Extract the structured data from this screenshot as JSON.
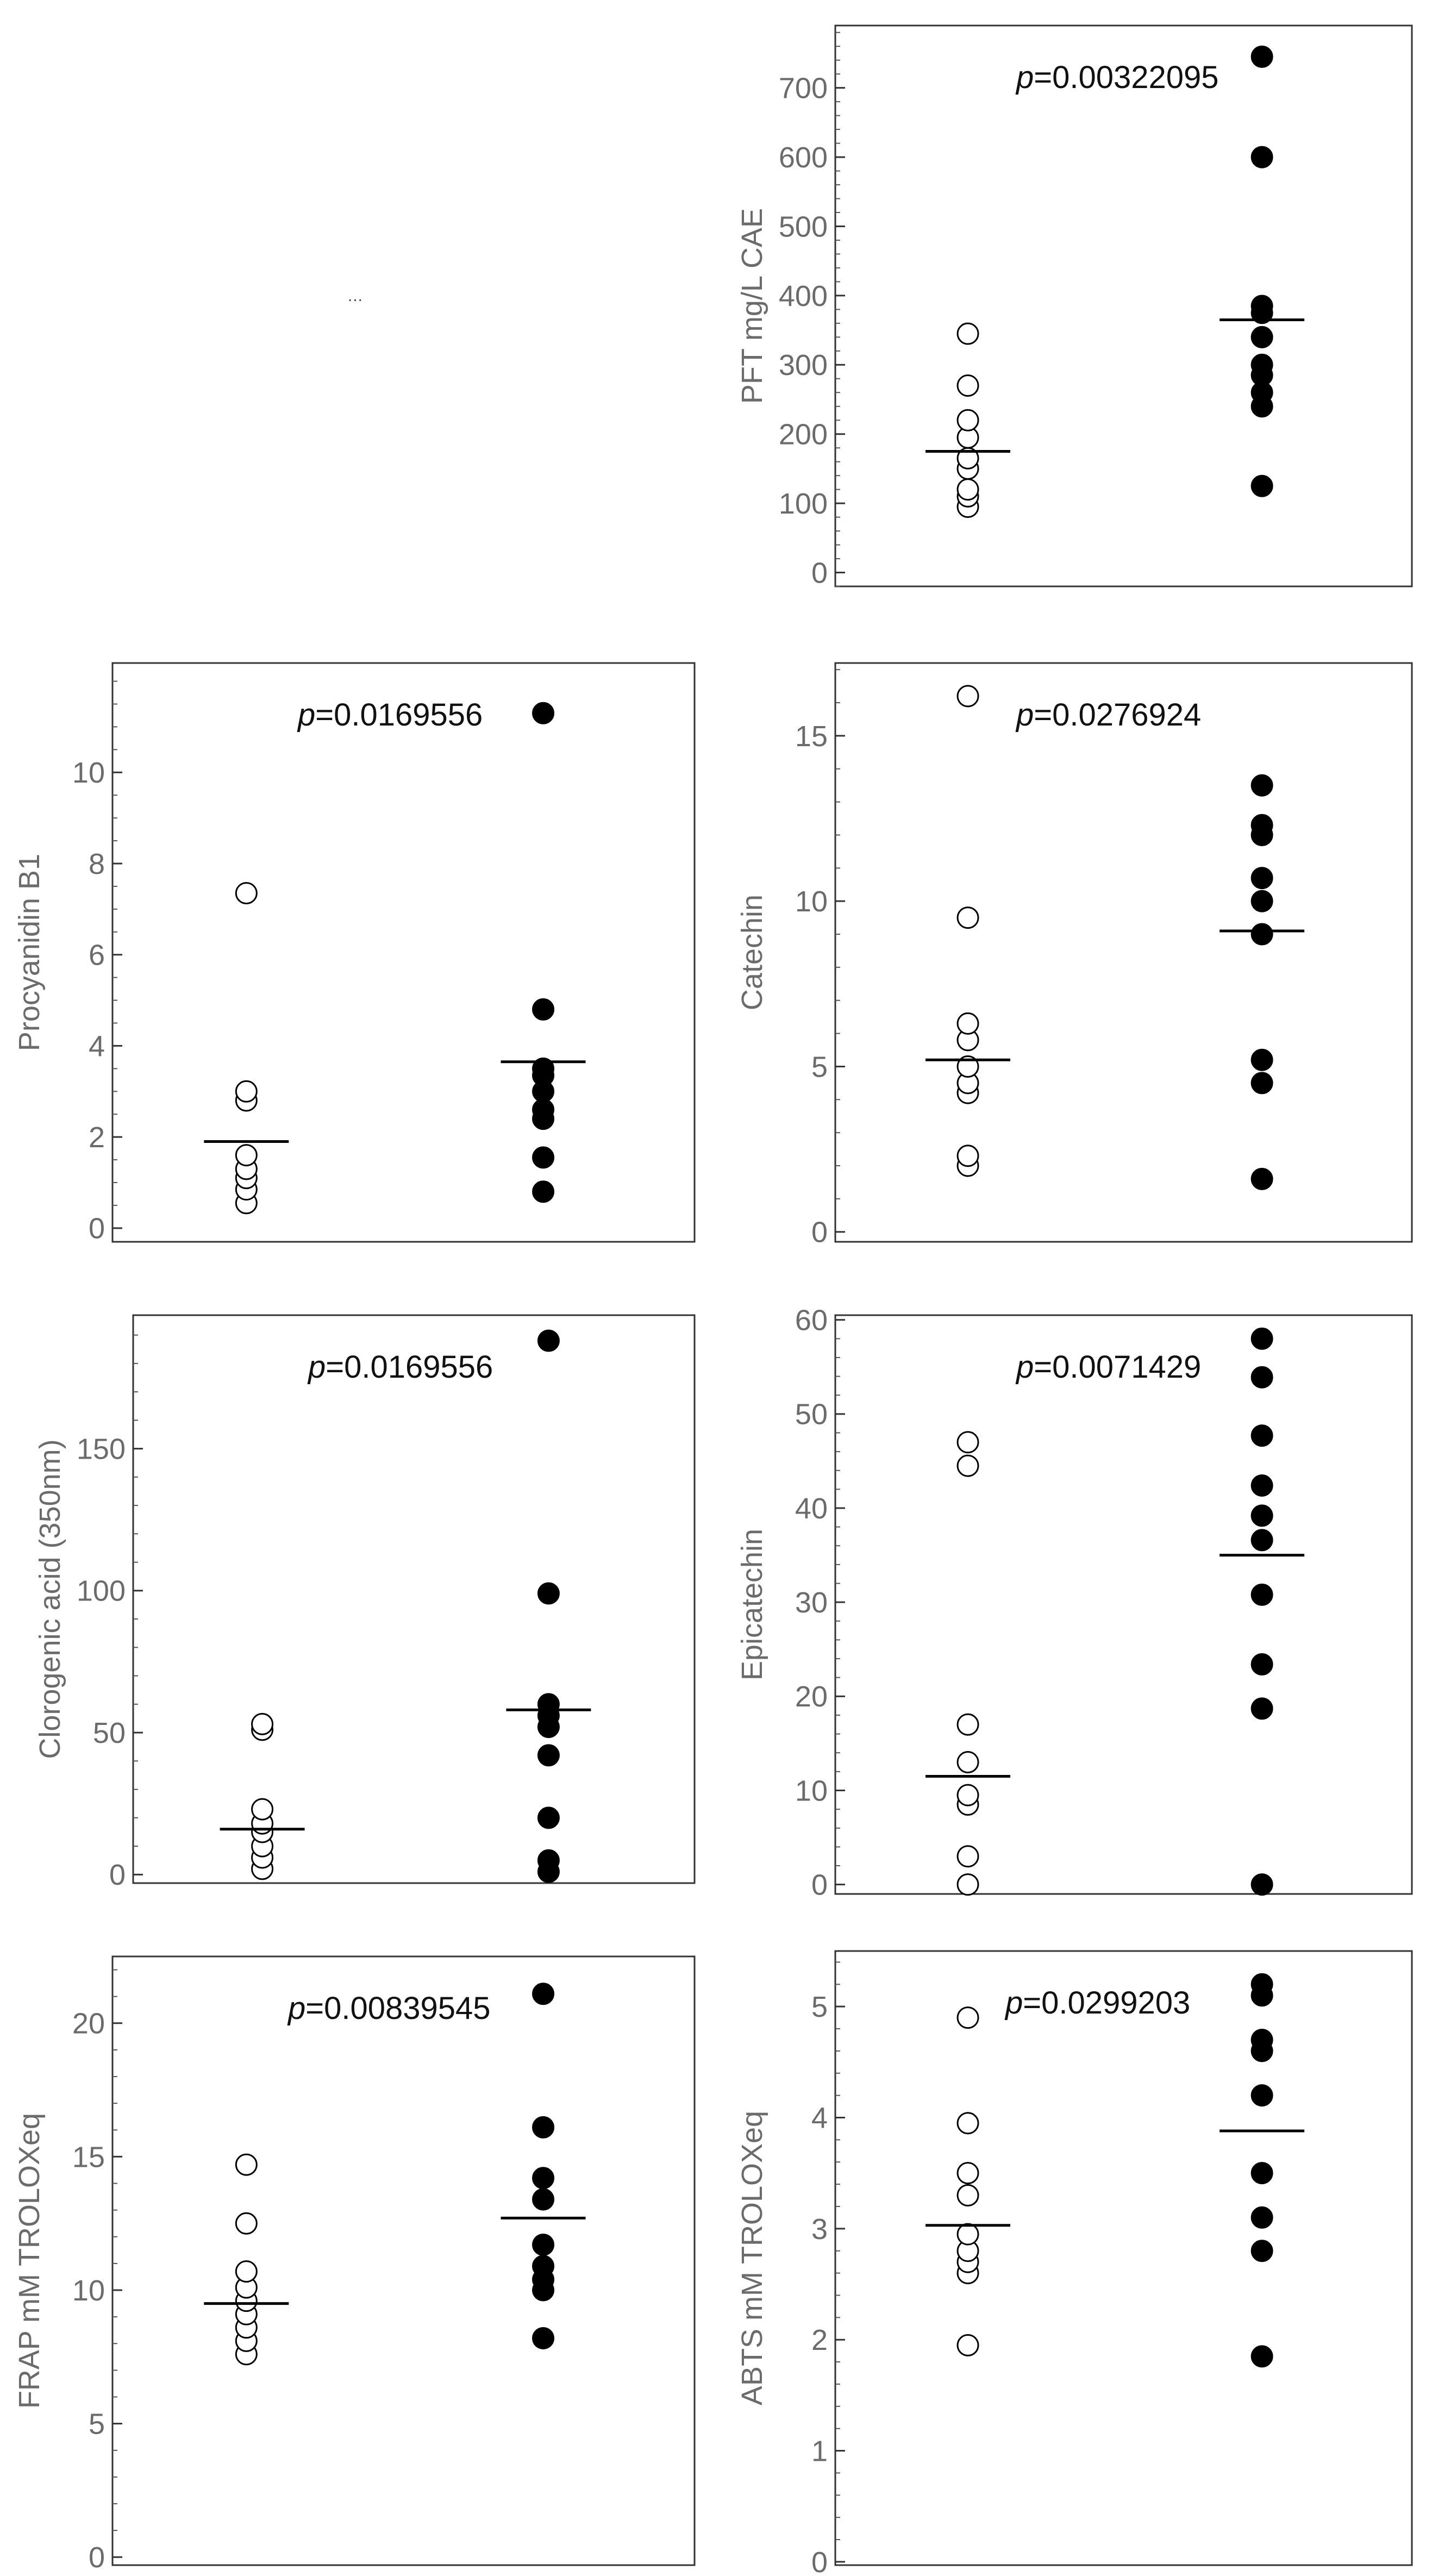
{
  "placeholder_text": "...",
  "chart_data": [
    {
      "type": "scatter",
      "title": "",
      "ylabel": "PFT mg/L CAE",
      "p_label": "p",
      "p_value": "=0.00322095",
      "ylim": [
        -20,
        790
      ],
      "ticks": [
        0,
        100,
        200,
        300,
        400,
        500,
        600,
        700
      ],
      "minor": 20,
      "series": [
        {
          "name": "group 1",
          "fill": "open",
          "values": [
            95,
            110,
            120,
            150,
            165,
            195,
            220,
            270,
            345
          ],
          "median": 175
        },
        {
          "name": "group 2",
          "fill": "filled",
          "values": [
            125,
            240,
            260,
            285,
            300,
            340,
            375,
            385,
            600,
            745
          ],
          "median": 365
        }
      ]
    },
    {
      "type": "scatter",
      "title": "",
      "ylabel": "Procyanidin B1",
      "p_label": "p",
      "p_value": "=0.0169556",
      "ylim": [
        -0.3,
        12.4
      ],
      "ticks": [
        0,
        2,
        4,
        6,
        8,
        10
      ],
      "minor": 0.5,
      "series": [
        {
          "name": "group 1",
          "fill": "open",
          "values": [
            0.55,
            0.85,
            1.1,
            1.3,
            1.6,
            2.8,
            3.0,
            7.35
          ],
          "median": 1.9
        },
        {
          "name": "group 2",
          "fill": "filled",
          "values": [
            0.8,
            1.55,
            2.4,
            2.6,
            3.0,
            3.35,
            3.5,
            4.8,
            11.3
          ],
          "median": 3.65
        }
      ]
    },
    {
      "type": "scatter",
      "title": "",
      "ylabel": "Catechin",
      "p_label": "p",
      "p_value": "=0.0276924",
      "ylim": [
        -0.3,
        17.2
      ],
      "ticks": [
        0,
        5,
        10,
        15
      ],
      "minor": 1,
      "series": [
        {
          "name": "group 1",
          "fill": "open",
          "values": [
            2.0,
            2.3,
            4.2,
            4.5,
            5.0,
            5.8,
            6.3,
            9.5,
            16.2
          ],
          "median": 5.2
        },
        {
          "name": "group 2",
          "fill": "filled",
          "values": [
            1.6,
            4.5,
            5.2,
            9.0,
            10.0,
            10.7,
            12.0,
            12.3,
            13.5
          ],
          "median": 9.1
        }
      ]
    },
    {
      "type": "scatter",
      "title": "",
      "ylabel": "Clorogenic acid (350nm)",
      "p_label": "p",
      "p_value": "=0.0169556",
      "ylim": [
        -3,
        197
      ],
      "ticks": [
        0,
        50,
        100,
        150
      ],
      "minor": 10,
      "series": [
        {
          "name": "group 1",
          "fill": "open",
          "values": [
            2,
            6,
            10,
            15,
            18,
            23,
            51,
            53
          ],
          "median": 16
        },
        {
          "name": "group 2",
          "fill": "filled",
          "values": [
            1,
            5,
            20,
            42,
            52,
            56,
            60,
            99,
            188
          ],
          "median": 58
        }
      ]
    },
    {
      "type": "scatter",
      "title": "",
      "ylabel": "Epicatechin",
      "p_label": "p",
      "p_value": "=0.0071429",
      "ylim": [
        -1,
        60.5
      ],
      "ticks": [
        0,
        10,
        20,
        30,
        40,
        50,
        60
      ],
      "minor": 2,
      "series": [
        {
          "name": "group 1",
          "fill": "open",
          "values": [
            0,
            3,
            8.5,
            9.5,
            13,
            17,
            44.5,
            47
          ],
          "median": 11.5
        },
        {
          "name": "group 2",
          "fill": "filled",
          "values": [
            0,
            18.7,
            23.4,
            30.8,
            36.6,
            39.2,
            42.4,
            47.7,
            53.9,
            58
          ],
          "median": 35
        }
      ]
    },
    {
      "type": "scatter",
      "title": "",
      "ylabel": "FRAP mM TROLOXeq",
      "p_label": "p",
      "p_value": "=0.00839545",
      "ylim": [
        -0.3,
        22.5
      ],
      "ticks": [
        0,
        5,
        10,
        15,
        20
      ],
      "minor": 1,
      "series": [
        {
          "name": "group 1",
          "fill": "open",
          "values": [
            7.6,
            8.1,
            8.6,
            9.1,
            9.6,
            10.1,
            10.7,
            12.5,
            14.7
          ],
          "median": 9.5
        },
        {
          "name": "group 2",
          "fill": "filled",
          "values": [
            8.2,
            10.0,
            10.4,
            10.9,
            11.7,
            13.4,
            14.2,
            16.1,
            21.1
          ],
          "median": 12.7
        }
      ]
    },
    {
      "type": "scatter",
      "title": "",
      "ylabel": "ABTS mM TROLOXeq",
      "p_label": "p",
      "p_value": "=0.0299203",
      "ylim": [
        -0.03,
        5.5
      ],
      "ticks": [
        0,
        1,
        2,
        3,
        4,
        5
      ],
      "minor": 0.2,
      "series": [
        {
          "name": "group 1",
          "fill": "open",
          "values": [
            1.95,
            2.6,
            2.7,
            2.8,
            2.95,
            3.3,
            3.5,
            3.95,
            4.9
          ],
          "median": 3.03
        },
        {
          "name": "group 2",
          "fill": "filled",
          "values": [
            1.85,
            2.8,
            3.1,
            3.5,
            4.2,
            4.6,
            4.7,
            5.1,
            5.2
          ],
          "median": 3.88
        }
      ]
    }
  ]
}
